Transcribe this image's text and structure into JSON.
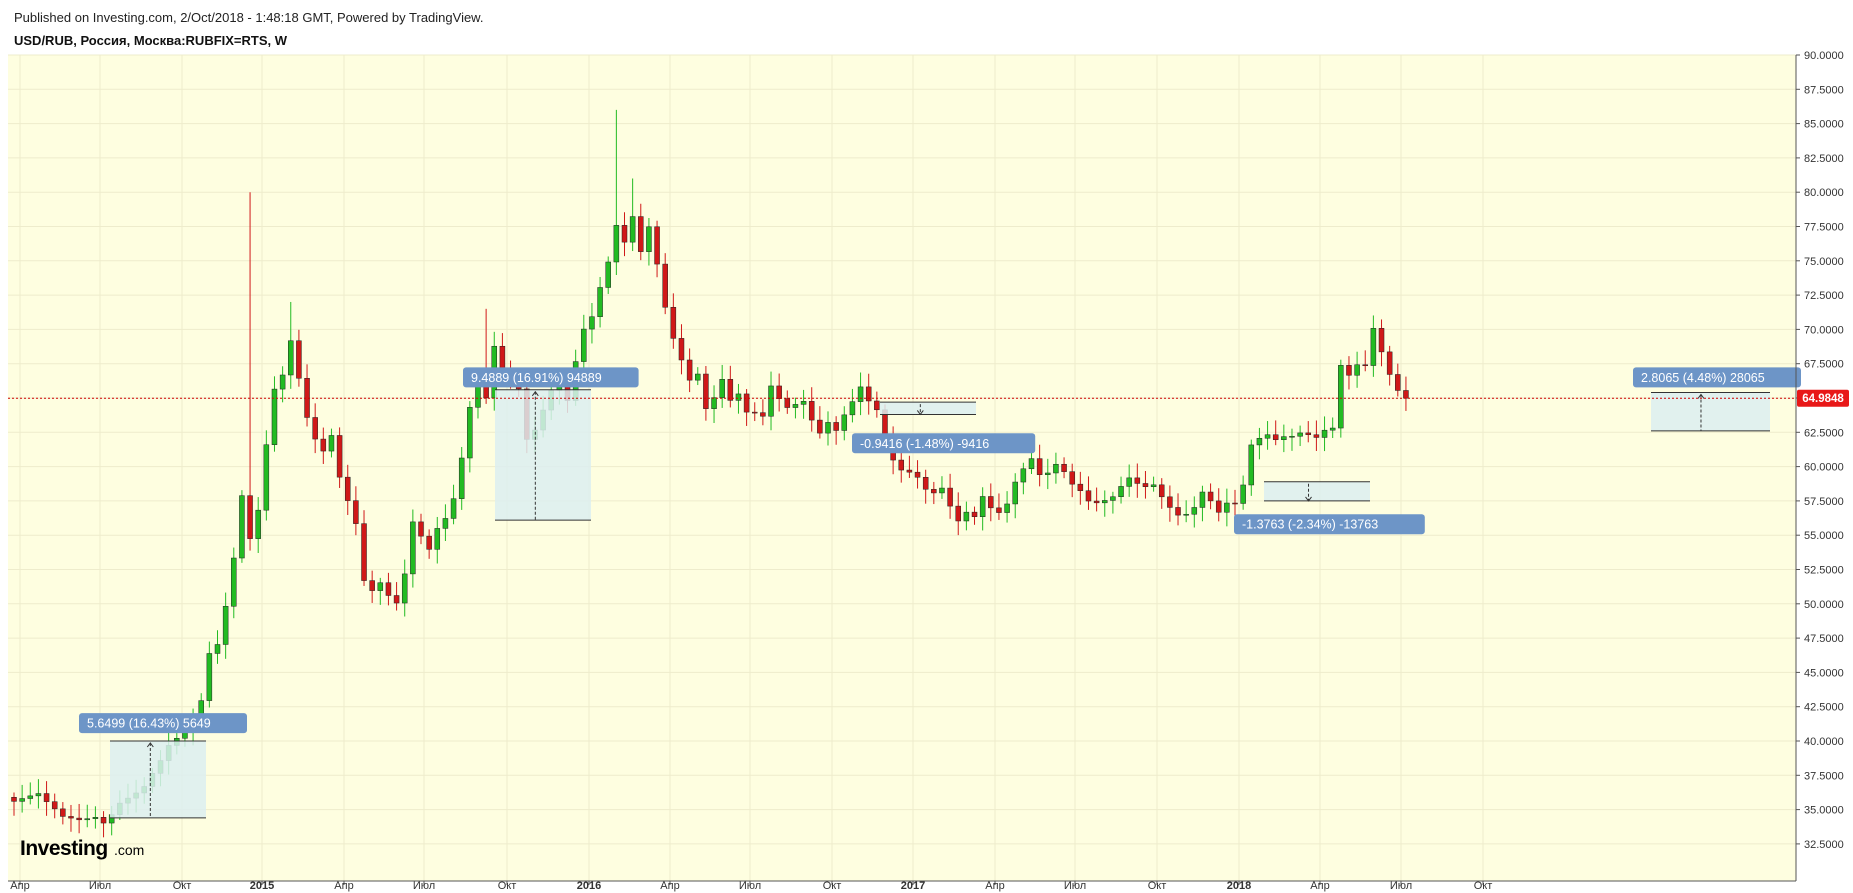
{
  "header": {
    "published": "Published on Investing.com, 2/Oct/2018 - 1:48:18 GMT, Powered by TradingView.",
    "symbol": "USD/RUB, Россия, Москва:RUBFIX=RTS, W"
  },
  "logo": {
    "brand": "Investing",
    "domain": ".com"
  },
  "colors": {
    "background": "#fefee0",
    "up": "#22bb22",
    "down": "#d01818",
    "price_line": "#cc0000",
    "annotation_box": "#6d95c7",
    "range_fill": "#dceef0"
  },
  "chart_data": {
    "type": "candlestick",
    "interval": "W",
    "y_axis_position": "right",
    "ylim": [
      31.5,
      90.5
    ],
    "y_ticks": [
      "32.5000",
      "35.0000",
      "37.5000",
      "40.0000",
      "42.5000",
      "45.0000",
      "47.5000",
      "50.0000",
      "52.5000",
      "55.0000",
      "57.5000",
      "60.0000",
      "62.5000",
      "65.0000",
      "67.5000",
      "70.0000",
      "72.5000",
      "75.0000",
      "77.5000",
      "80.0000",
      "82.5000",
      "85.0000",
      "87.5000",
      "90.0000"
    ],
    "x_ticks": [
      {
        "label": "Апр",
        "bold": false
      },
      {
        "label": "Июл",
        "bold": false
      },
      {
        "label": "Окт",
        "bold": false
      },
      {
        "label": "2015",
        "bold": true
      },
      {
        "label": "Апр",
        "bold": false
      },
      {
        "label": "Июл",
        "bold": false
      },
      {
        "label": "Окт",
        "bold": false
      },
      {
        "label": "2016",
        "bold": true
      },
      {
        "label": "Апр",
        "bold": false
      },
      {
        "label": "Июл",
        "bold": false
      },
      {
        "label": "Окт",
        "bold": false
      },
      {
        "label": "2017",
        "bold": true
      },
      {
        "label": "Апр",
        "bold": false
      },
      {
        "label": "Июл",
        "bold": false
      },
      {
        "label": "Окт",
        "bold": false
      },
      {
        "label": "2018",
        "bold": true
      },
      {
        "label": "Апр",
        "bold": false
      },
      {
        "label": "Июл",
        "bold": false
      },
      {
        "label": "Окт",
        "bold": false
      }
    ],
    "last_price": "64.9848",
    "last_price_value": 64.9848,
    "close_path": [
      [
        0,
        35.6
      ],
      [
        3,
        36.0
      ],
      [
        4,
        35.4
      ],
      [
        6,
        34.4
      ],
      [
        8,
        34.3
      ],
      [
        10,
        34.6
      ],
      [
        11,
        34.2
      ],
      [
        12,
        34.8
      ],
      [
        13,
        35.6
      ],
      [
        15,
        36.2
      ],
      [
        16,
        36.6
      ],
      [
        18,
        38.4
      ],
      [
        19,
        39.5
      ],
      [
        21,
        40.6
      ],
      [
        23,
        43.0
      ],
      [
        24,
        46.5
      ],
      [
        25,
        47.2
      ],
      [
        26,
        50.0
      ],
      [
        27,
        53.5
      ],
      [
        28,
        58.0
      ],
      [
        29,
        54.8
      ],
      [
        30,
        56.8
      ],
      [
        31,
        61.5
      ],
      [
        32,
        65.5
      ],
      [
        33,
        66.5
      ],
      [
        34,
        69.0
      ],
      [
        35,
        66.3
      ],
      [
        36,
        63.5
      ],
      [
        37,
        62.0
      ],
      [
        38,
        61.2
      ],
      [
        39,
        62.4
      ],
      [
        40,
        59.4
      ],
      [
        41,
        57.7
      ],
      [
        42,
        56.0
      ],
      [
        43,
        51.8
      ],
      [
        44,
        51.0
      ],
      [
        45,
        51.5
      ],
      [
        46,
        50.5
      ],
      [
        47,
        49.9
      ],
      [
        48,
        52.0
      ],
      [
        49,
        55.8
      ],
      [
        50,
        54.8
      ],
      [
        51,
        53.9
      ],
      [
        52,
        55.5
      ],
      [
        53,
        56.3
      ],
      [
        54,
        57.8
      ],
      [
        55,
        60.8
      ],
      [
        56,
        64.5
      ],
      [
        57,
        66.5
      ],
      [
        58,
        65.1
      ],
      [
        59,
        68.8
      ],
      [
        60,
        67.0
      ],
      [
        62,
        65.5
      ],
      [
        63,
        61.8
      ],
      [
        64,
        62.5
      ],
      [
        65,
        64.0
      ],
      [
        66,
        65.5
      ],
      [
        67,
        66.2
      ],
      [
        68,
        64.9
      ],
      [
        69,
        67.8
      ],
      [
        70,
        70.2
      ],
      [
        71,
        71.1
      ],
      [
        72,
        73.2
      ],
      [
        73,
        75.0
      ],
      [
        74,
        77.6
      ],
      [
        75,
        76.3
      ],
      [
        76,
        78.1
      ],
      [
        77,
        75.5
      ],
      [
        78,
        77.3
      ],
      [
        79,
        74.6
      ],
      [
        80,
        71.5
      ],
      [
        81,
        69.3
      ],
      [
        82,
        67.8
      ],
      [
        83,
        66.4
      ],
      [
        84,
        66.9
      ],
      [
        85,
        64.4
      ],
      [
        86,
        65.2
      ],
      [
        87,
        66.5
      ],
      [
        88,
        64.9
      ],
      [
        89,
        65.3
      ],
      [
        90,
        63.9
      ],
      [
        91,
        63.8
      ],
      [
        92,
        63.5
      ],
      [
        93,
        65.7
      ],
      [
        94,
        64.8
      ],
      [
        95,
        64.2
      ],
      [
        96,
        64.5
      ],
      [
        97,
        64.8
      ],
      [
        98,
        63.5
      ],
      [
        99,
        62.6
      ],
      [
        100,
        63.4
      ],
      [
        101,
        62.8
      ],
      [
        102,
        63.9
      ],
      [
        103,
        64.8
      ],
      [
        104,
        65.8
      ],
      [
        105,
        64.7
      ],
      [
        106,
        64.0
      ],
      [
        107,
        62.0
      ],
      [
        108,
        60.3
      ],
      [
        109,
        59.6
      ],
      [
        110,
        59.5
      ],
      [
        111,
        59.2
      ],
      [
        112,
        58.4
      ],
      [
        113,
        58.2
      ],
      [
        114,
        58.6
      ],
      [
        115,
        57.3
      ],
      [
        116,
        56.2
      ],
      [
        117,
        56.8
      ],
      [
        118,
        56.4
      ],
      [
        119,
        57.8
      ],
      [
        120,
        56.9
      ],
      [
        121,
        56.5
      ],
      [
        122,
        57.1
      ],
      [
        123,
        58.7
      ],
      [
        124,
        59.7
      ],
      [
        125,
        60.5
      ],
      [
        126,
        59.4
      ],
      [
        127,
        59.6
      ],
      [
        128,
        60.3
      ],
      [
        129,
        59.8
      ],
      [
        130,
        58.9
      ],
      [
        131,
        58.4
      ],
      [
        132,
        57.6
      ],
      [
        133,
        57.4
      ],
      [
        134,
        57.5
      ],
      [
        135,
        57.7
      ],
      [
        136,
        58.4
      ],
      [
        137,
        59.0
      ],
      [
        138,
        58.6
      ],
      [
        139,
        58.4
      ],
      [
        140,
        58.6
      ],
      [
        141,
        57.8
      ],
      [
        142,
        57.1
      ],
      [
        143,
        56.6
      ],
      [
        144,
        56.7
      ],
      [
        145,
        57.2
      ],
      [
        146,
        58.3
      ],
      [
        147,
        57.6
      ],
      [
        148,
        56.7
      ],
      [
        149,
        57.3
      ],
      [
        150,
        57.2
      ],
      [
        151,
        58.5
      ],
      [
        152,
        61.4
      ],
      [
        153,
        61.9
      ],
      [
        154,
        62.2
      ],
      [
        155,
        61.9
      ],
      [
        156,
        62.2
      ],
      [
        157,
        62.3
      ],
      [
        158,
        62.6
      ],
      [
        159,
        62.5
      ],
      [
        160,
        62.3
      ],
      [
        161,
        62.8
      ],
      [
        162,
        62.9
      ],
      [
        163,
        67.4
      ],
      [
        164,
        66.6
      ],
      [
        165,
        67.3
      ],
      [
        166,
        67.2
      ],
      [
        167,
        69.9
      ],
      [
        168,
        68.2
      ],
      [
        169,
        66.6
      ],
      [
        170,
        65.5
      ],
      [
        171,
        64.98
      ]
    ],
    "annotations": [
      {
        "text": "5.6499 (16.43%) 5649",
        "change": 5.6499,
        "percent": 16.43
      },
      {
        "text": "9.4889 (16.91%) 94889",
        "change": 9.4889,
        "percent": 16.91
      },
      {
        "text": "-0.9416 (-1.48%) -9416",
        "change": -0.9416,
        "percent": -1.48
      },
      {
        "text": "-1.3763 (-2.34%) -13763",
        "change": -1.3763,
        "percent": -2.34
      },
      {
        "text": "2.8065 (4.48%) 28065",
        "change": 2.8065,
        "percent": 4.48
      }
    ]
  }
}
